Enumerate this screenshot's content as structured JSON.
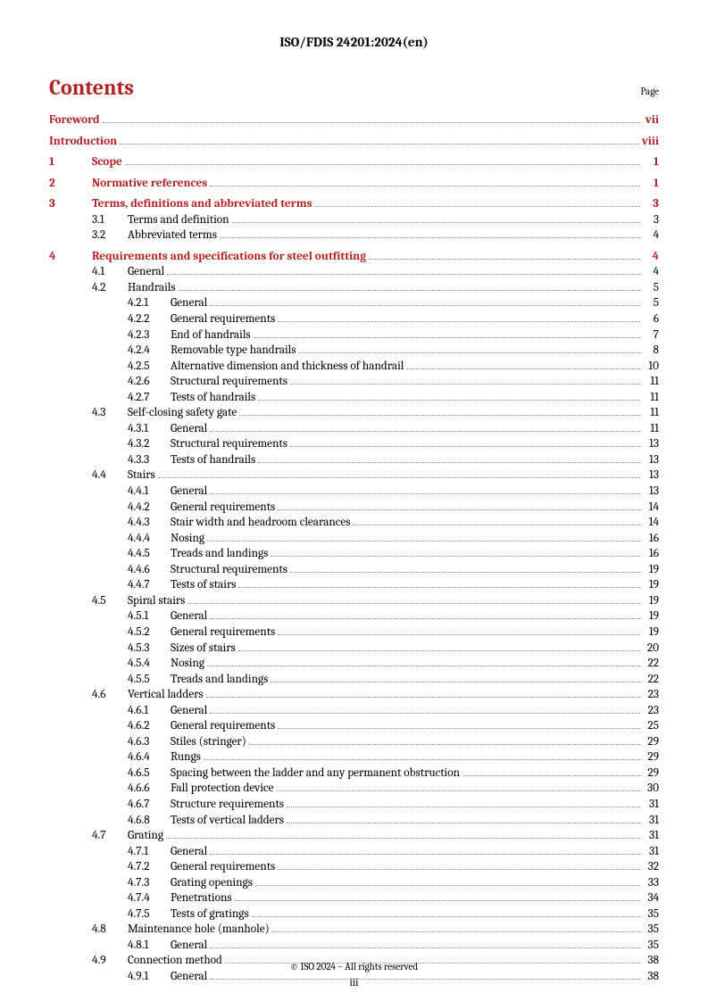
{
  "document": {
    "header": "ISO/FDIS 24201:2024(en)",
    "contents_title": "Contents",
    "page_label": "Page",
    "footer": "© ISO 2024 – All rights reserved",
    "page_number": "iii"
  },
  "toc": [
    {
      "level": 0,
      "num": "",
      "title": "Foreword",
      "page": "vii",
      "bold": true
    },
    {
      "gap": true
    },
    {
      "level": 0,
      "num": "",
      "title": "Introduction",
      "page": "viii",
      "bold": true
    },
    {
      "gap": true
    },
    {
      "level": 1,
      "num": "1",
      "title": "Scope",
      "page": "1",
      "bold": true
    },
    {
      "gap": true
    },
    {
      "level": 1,
      "num": "2",
      "title": "Normative references",
      "page": "1",
      "bold": true
    },
    {
      "gap": true
    },
    {
      "level": 1,
      "num": "3",
      "title": "Terms, definitions and abbreviated terms",
      "page": "3",
      "bold": true
    },
    {
      "level": 2,
      "num": "3.1",
      "title": "Terms and definition",
      "page": "3"
    },
    {
      "level": 2,
      "num": "3.2",
      "title": "Abbreviated terms",
      "page": "4"
    },
    {
      "gap": true
    },
    {
      "level": 1,
      "num": "4",
      "title": "Requirements and specifications for steel outfitting",
      "page": "4",
      "bold": true
    },
    {
      "level": 2,
      "num": "4.1",
      "title": "General",
      "page": "4"
    },
    {
      "level": 2,
      "num": "4.2",
      "title": "Handrails",
      "page": "5"
    },
    {
      "level": 3,
      "num": "4.2.1",
      "title": "General",
      "page": "5"
    },
    {
      "level": 3,
      "num": "4.2.2",
      "title": "General requirements",
      "page": "6"
    },
    {
      "level": 3,
      "num": "4.2.3",
      "title": "End of handrails",
      "page": "7"
    },
    {
      "level": 3,
      "num": "4.2.4",
      "title": "Removable type handrails",
      "page": "8"
    },
    {
      "level": 3,
      "num": "4.2.5",
      "title": "Alternative dimension and thickness of handrail",
      "page": "10"
    },
    {
      "level": 3,
      "num": "4.2.6",
      "title": "Structural requirements",
      "page": "11"
    },
    {
      "level": 3,
      "num": "4.2.7",
      "title": "Tests of handrails",
      "page": "11"
    },
    {
      "level": 2,
      "num": "4.3",
      "title": "Self-closing safety gate",
      "page": "11"
    },
    {
      "level": 3,
      "num": "4.3.1",
      "title": "General",
      "page": "11"
    },
    {
      "level": 3,
      "num": "4.3.2",
      "title": "Structural requirements",
      "page": "13"
    },
    {
      "level": 3,
      "num": "4.3.3",
      "title": "Tests of handrails",
      "page": "13"
    },
    {
      "level": 2,
      "num": "4.4",
      "title": "Stairs",
      "page": "13"
    },
    {
      "level": 3,
      "num": "4.4.1",
      "title": "General",
      "page": "13"
    },
    {
      "level": 3,
      "num": "4.4.2",
      "title": "General requirements",
      "page": "14"
    },
    {
      "level": 3,
      "num": "4.4.3",
      "title": "Stair width and headroom clearances",
      "page": "14"
    },
    {
      "level": 3,
      "num": "4.4.4",
      "title": "Nosing",
      "page": "16"
    },
    {
      "level": 3,
      "num": "4.4.5",
      "title": "Treads and landings",
      "page": "16"
    },
    {
      "level": 3,
      "num": "4.4.6",
      "title": "Structural requirements",
      "page": "19"
    },
    {
      "level": 3,
      "num": "4.4.7",
      "title": "Tests of stairs",
      "page": "19"
    },
    {
      "level": 2,
      "num": "4.5",
      "title": "Spiral stairs",
      "page": "19"
    },
    {
      "level": 3,
      "num": "4.5.1",
      "title": "General",
      "page": "19"
    },
    {
      "level": 3,
      "num": "4.5.2",
      "title": "General requirements",
      "page": "19"
    },
    {
      "level": 3,
      "num": "4.5.3",
      "title": "Sizes of stairs",
      "page": "20"
    },
    {
      "level": 3,
      "num": "4.5.4",
      "title": "Nosing",
      "page": "22"
    },
    {
      "level": 3,
      "num": "4.5.5",
      "title": "Treads and landings",
      "page": "22"
    },
    {
      "level": 2,
      "num": "4.6",
      "title": "Vertical ladders",
      "page": "23"
    },
    {
      "level": 3,
      "num": "4.6.1",
      "title": "General",
      "page": "23"
    },
    {
      "level": 3,
      "num": "4.6.2",
      "title": "General requirements",
      "page": "25"
    },
    {
      "level": 3,
      "num": "4.6.3",
      "title": "Stiles (stringer)",
      "page": "29"
    },
    {
      "level": 3,
      "num": "4.6.4",
      "title": "Rungs",
      "page": "29"
    },
    {
      "level": 3,
      "num": "4.6.5",
      "title": "Spacing between the ladder and any permanent obstruction",
      "page": "29"
    },
    {
      "level": 3,
      "num": "4.6.6",
      "title": "Fall protection device",
      "page": "30"
    },
    {
      "level": 3,
      "num": "4.6.7",
      "title": "Structure requirements",
      "page": "31"
    },
    {
      "level": 3,
      "num": "4.6.8",
      "title": "Tests of vertical ladders",
      "page": "31"
    },
    {
      "level": 2,
      "num": "4.7",
      "title": "Grating",
      "page": "31"
    },
    {
      "level": 3,
      "num": "4.7.1",
      "title": "General",
      "page": "31"
    },
    {
      "level": 3,
      "num": "4.7.2",
      "title": "General requirements",
      "page": "32"
    },
    {
      "level": 3,
      "num": "4.7.3",
      "title": "Grating openings",
      "page": "33"
    },
    {
      "level": 3,
      "num": "4.7.4",
      "title": "Penetrations",
      "page": "34"
    },
    {
      "level": 3,
      "num": "4.7.5",
      "title": "Tests of gratings",
      "page": "35"
    },
    {
      "level": 2,
      "num": "4.8",
      "title": "Maintenance hole (manhole)",
      "page": "35"
    },
    {
      "level": 3,
      "num": "4.8.1",
      "title": "General",
      "page": "35"
    },
    {
      "level": 2,
      "num": "4.9",
      "title": "Connection method",
      "page": "38"
    },
    {
      "level": 3,
      "num": "4.9.1",
      "title": "General",
      "page": "38"
    }
  ]
}
